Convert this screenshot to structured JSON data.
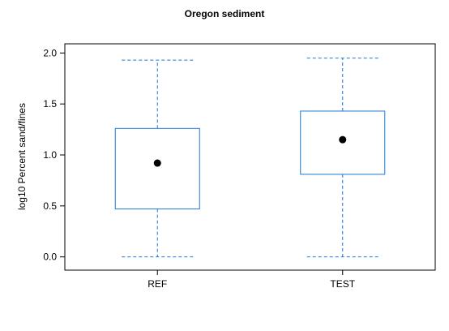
{
  "chart_data": {
    "type": "box",
    "title": "Oregon sediment",
    "xlabel": "",
    "ylabel": "log10 Percent sand/fines",
    "categories": [
      "REF",
      "TEST"
    ],
    "boxes": [
      {
        "category": "REF",
        "whisker_low": 0.0,
        "q1": 0.47,
        "q3": 1.26,
        "whisker_high": 1.93,
        "mean": 0.92
      },
      {
        "category": "TEST",
        "whisker_low": 0.0,
        "q1": 0.81,
        "q3": 1.43,
        "whisker_high": 1.95,
        "mean": 1.15
      }
    ],
    "yticks": [
      "0.0",
      "0.5",
      "1.0",
      "1.5",
      "2.0"
    ],
    "ylim": [
      -0.13,
      2.09
    ],
    "grid": false,
    "box_color": "#1f77d4",
    "point_color": "#000000"
  }
}
